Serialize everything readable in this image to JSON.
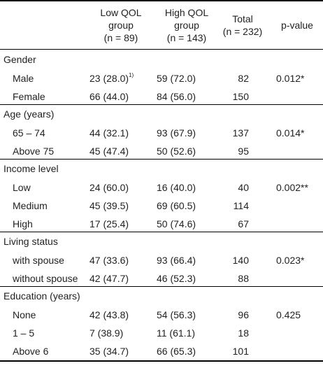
{
  "header": {
    "low": [
      "Low QOL",
      "group",
      "(n = 89)"
    ],
    "high": [
      "High QOL",
      "group",
      "(n = 143)"
    ],
    "total": [
      "Total",
      "(n = 232)"
    ],
    "pvalue": "p-value"
  },
  "footnote_marker": "1)",
  "sections": [
    {
      "label": "Gender",
      "rows": [
        {
          "name": "Male",
          "low": "23 (28.0)",
          "low_sup": "1)",
          "high": "59 (72.0)",
          "total": "82",
          "p": "0.012*"
        },
        {
          "name": "Female",
          "low": "66 (44.0)",
          "high": "84 (56.0)",
          "total": "150",
          "p": ""
        }
      ]
    },
    {
      "label": "Age (years)",
      "rows": [
        {
          "name": "65 – 74",
          "low": "44 (32.1)",
          "high": "93 (67.9)",
          "total": "137",
          "p": "0.014*"
        },
        {
          "name": "Above 75",
          "low": "45 (47.4)",
          "high": "50 (52.6)",
          "total": "95",
          "p": ""
        }
      ]
    },
    {
      "label": "Income level",
      "rows": [
        {
          "name": "Low",
          "low": "24 (60.0)",
          "high": "16 (40.0)",
          "total": "40",
          "p": "0.002**"
        },
        {
          "name": "Medium",
          "low": "45 (39.5)",
          "high": "69 (60.5)",
          "total": "114",
          "p": ""
        },
        {
          "name": "High",
          "low": "17 (25.4)",
          "high": "50 (74.6)",
          "total": "67",
          "p": ""
        }
      ]
    },
    {
      "label": "Living status",
      "rows": [
        {
          "name": "with spouse",
          "low": "47 (33.6)",
          "high": "93 (66.4)",
          "total": "140",
          "p": "0.023*"
        },
        {
          "name": "without spouse",
          "low": "42 (47.7)",
          "high": "46 (52.3)",
          "total": "88",
          "p": ""
        }
      ]
    },
    {
      "label": "Education (years)",
      "rows": [
        {
          "name": "None",
          "low": "42 (43.8)",
          "high": "54 (56.3)",
          "total": "96",
          "p": "0.425"
        },
        {
          "name": "1 – 5",
          "low": "7 (38.9)",
          "high": "11 (61.1)",
          "total": "18",
          "p": ""
        },
        {
          "name": "Above 6",
          "low": "35 (34.7)",
          "high": "66 (65.3)",
          "total": "101",
          "p": ""
        }
      ]
    }
  ]
}
